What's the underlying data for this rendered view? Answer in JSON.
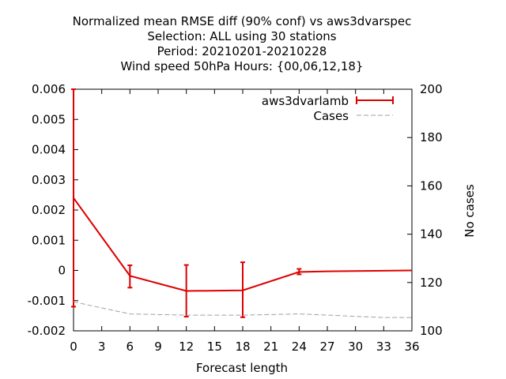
{
  "chart_data": {
    "type": "line",
    "title_lines": [
      "Normalized mean RMSE diff (90% conf) vs aws3dvarspec",
      "Selection: ALL using    30 stations",
      "Period: 20210201-20210228",
      "Wind speed 50hPa   Hours: {00,06,12,18}"
    ],
    "xlabel": "Forecast length",
    "ylabel": "",
    "y2label": "No cases",
    "xlim": [
      0,
      36
    ],
    "ylim": [
      -0.002,
      0.006
    ],
    "y2lim": [
      100,
      200
    ],
    "x_ticks": [
      0,
      3,
      6,
      9,
      12,
      15,
      18,
      21,
      24,
      27,
      30,
      33,
      36
    ],
    "x_tick_labels": [
      "0",
      "3",
      "6",
      "9",
      "12",
      "15",
      "18",
      "21",
      "24",
      "27",
      "30",
      "33",
      "36"
    ],
    "y_ticks": [
      -0.002,
      -0.001,
      0,
      0.001,
      0.002,
      0.003,
      0.004,
      0.005,
      0.006
    ],
    "y_tick_labels": [
      "-0.002",
      "-0.001",
      "0",
      "0.001",
      "0.002",
      "0.003",
      "0.004",
      "0.005",
      "0.006"
    ],
    "y2_ticks": [
      100,
      120,
      140,
      160,
      180,
      200
    ],
    "y2_tick_labels": [
      "100",
      "120",
      "140",
      "160",
      "180",
      "200"
    ],
    "grid": false,
    "legend_position": "top-right",
    "series": [
      {
        "name": "aws3dvarlamb",
        "axis": "y",
        "style": "line-errorbars",
        "color": "#dd0000",
        "x": [
          0,
          6,
          12,
          18,
          24,
          27,
          36
        ],
        "y": [
          0.0024,
          -0.00018,
          -0.00068,
          -0.00066,
          -5e-05,
          -3e-05,
          0.0
        ],
        "err_low": [
          -0.0012,
          -0.00057,
          -0.00153,
          -0.00155,
          -0.00013,
          null,
          null
        ],
        "err_high": [
          0.006,
          0.00017,
          0.00018,
          0.00027,
          5e-05,
          null,
          null
        ]
      },
      {
        "name": "Cases",
        "axis": "y2",
        "style": "dashed",
        "color": "#a0a0a0",
        "x": [
          0,
          6,
          12,
          18,
          24,
          27,
          30,
          33,
          36
        ],
        "y": [
          112,
          107,
          106.5,
          106.5,
          107,
          106.5,
          106,
          105.5,
          105.5
        ]
      }
    ]
  }
}
